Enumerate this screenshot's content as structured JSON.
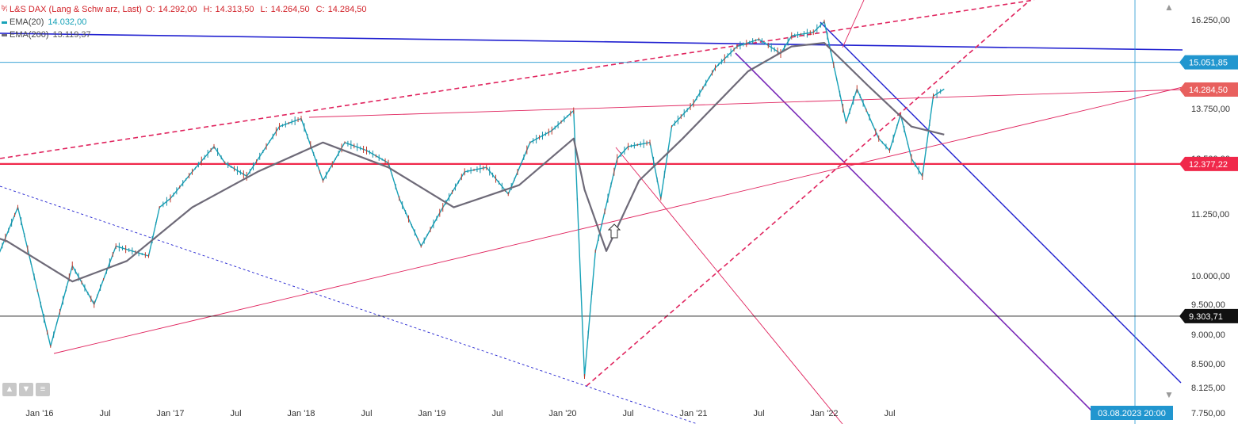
{
  "legend": {
    "instrument": "L&S DAX (Lang & Schw arz, Last)",
    "ohlc": [
      {
        "label": "O:",
        "value": "14.292,00"
      },
      {
        "label": "H:",
        "value": "14.313,50"
      },
      {
        "label": "L:",
        "value": "14.264,50"
      },
      {
        "label": "C:",
        "value": "14.284,50"
      }
    ],
    "ema20": {
      "name": "EMA(20)",
      "value": "14.032,00",
      "color": "#17a2b8"
    },
    "ema200": {
      "name": "EMA(200)",
      "value": "13.119,37",
      "color": "#6e6a78"
    }
  },
  "price_tags": [
    {
      "text": "15.051,85",
      "value": 15051.85,
      "color": "#2196cf"
    },
    {
      "text": "14.284,50",
      "value": 14284.5,
      "color": "#e8605e"
    },
    {
      "text": "12.377,22",
      "value": 12377.22,
      "color": "#f0284a"
    },
    {
      "text": "9.303,71",
      "value": 9303.71,
      "color": "#111111"
    }
  ],
  "date_tag": {
    "text": "03.08.2023 20:00",
    "color": "#2196cf"
  },
  "icons": [
    "chart-type-icon",
    "arrow-up-icon",
    "arrow-down-icon",
    "menu-icon",
    "scroll-up-icon",
    "scroll-down-icon",
    "hand-cursor-icon"
  ],
  "chart_data": {
    "type": "line",
    "title": "L&S DAX (Lang & Schw arz, Last)",
    "y_tick_labels": [
      "16.250,00",
      "13.750,00",
      "12.500,00",
      "11.250,00",
      "10.000,00",
      "9.500,00",
      "9.000,00",
      "8.500,00",
      "8.125,00",
      "7.750,00"
    ],
    "y_tick_values": [
      16250,
      13750,
      12500,
      11250,
      10000,
      9500,
      9000,
      8500,
      8125,
      7750
    ],
    "x_tick_labels": [
      "Jan '16",
      "Jul",
      "Jan '17",
      "Jul",
      "Jan '18",
      "Jul",
      "Jan '19",
      "Jul",
      "Jan '20",
      "Jul",
      "Jan '21",
      "Jul",
      "Jan '22",
      "Jul"
    ],
    "x_tick_dates": [
      "2016-01",
      "2016-07",
      "2017-01",
      "2017-07",
      "2018-01",
      "2018-07",
      "2019-01",
      "2019-07",
      "2020-01",
      "2020-07",
      "2021-01",
      "2021-07",
      "2022-01",
      "2022-07"
    ],
    "x_range": [
      "2015-06",
      "2023-09"
    ],
    "grid": false,
    "series": [
      {
        "name": "L&S DAX",
        "color": "#17a2b8",
        "x": [
          "2015-06",
          "2015-08",
          "2015-09",
          "2015-11",
          "2016-02",
          "2016-04",
          "2016-06",
          "2016-08",
          "2016-11",
          "2016-12",
          "2017-01",
          "2017-03",
          "2017-05",
          "2017-06",
          "2017-08",
          "2017-11",
          "2018-01",
          "2018-03",
          "2018-05",
          "2018-07",
          "2018-09",
          "2018-10",
          "2018-12",
          "2019-02",
          "2019-04",
          "2019-06",
          "2019-08",
          "2019-10",
          "2019-12",
          "2020-02",
          "2020-03",
          "2020-04",
          "2020-06",
          "2020-07",
          "2020-09",
          "2020-10",
          "2020-11",
          "2021-01",
          "2021-03",
          "2021-05",
          "2021-07",
          "2021-09",
          "2021-10",
          "2021-12",
          "2022-01",
          "2022-03",
          "2022-04",
          "2022-06",
          "2022-07",
          "2022-08",
          "2022-09",
          "2022-10",
          "2022-11",
          "2022-12"
        ],
        "values": [
          11600,
          9600,
          10300,
          11400,
          8800,
          10200,
          9500,
          10600,
          10400,
          11400,
          11600,
          12200,
          12800,
          12400,
          12100,
          13300,
          13500,
          12000,
          12900,
          12700,
          12400,
          11600,
          10600,
          11400,
          12200,
          12300,
          11700,
          12900,
          13200,
          13700,
          8300,
          10500,
          12500,
          12800,
          12900,
          11600,
          13300,
          13900,
          14900,
          15500,
          15700,
          15300,
          15800,
          15900,
          16200,
          13400,
          14300,
          13000,
          12700,
          13600,
          12500,
          12100,
          14100,
          14300
        ]
      },
      {
        "name": "EMA(20)",
        "color": "#17a2b8",
        "values": [
          14032
        ]
      },
      {
        "name": "EMA(200)",
        "color": "#6e6a78",
        "x": [
          "2015-06",
          "2015-10",
          "2016-04",
          "2016-09",
          "2017-03",
          "2017-09",
          "2018-03",
          "2018-09",
          "2019-03",
          "2019-09",
          "2020-02",
          "2020-03",
          "2020-05",
          "2020-08",
          "2020-12",
          "2021-06",
          "2021-10",
          "2022-01",
          "2022-05",
          "2022-09",
          "2022-12"
        ],
        "values": [
          11000,
          10700,
          9900,
          10300,
          11400,
          12200,
          12900,
          12300,
          11400,
          11900,
          13000,
          11800,
          10500,
          12000,
          13000,
          14800,
          15500,
          15600,
          14400,
          13300,
          13100
        ]
      }
    ],
    "horizontal_levels": [
      15051.85,
      14284.5,
      12377.22,
      9303.71
    ]
  }
}
